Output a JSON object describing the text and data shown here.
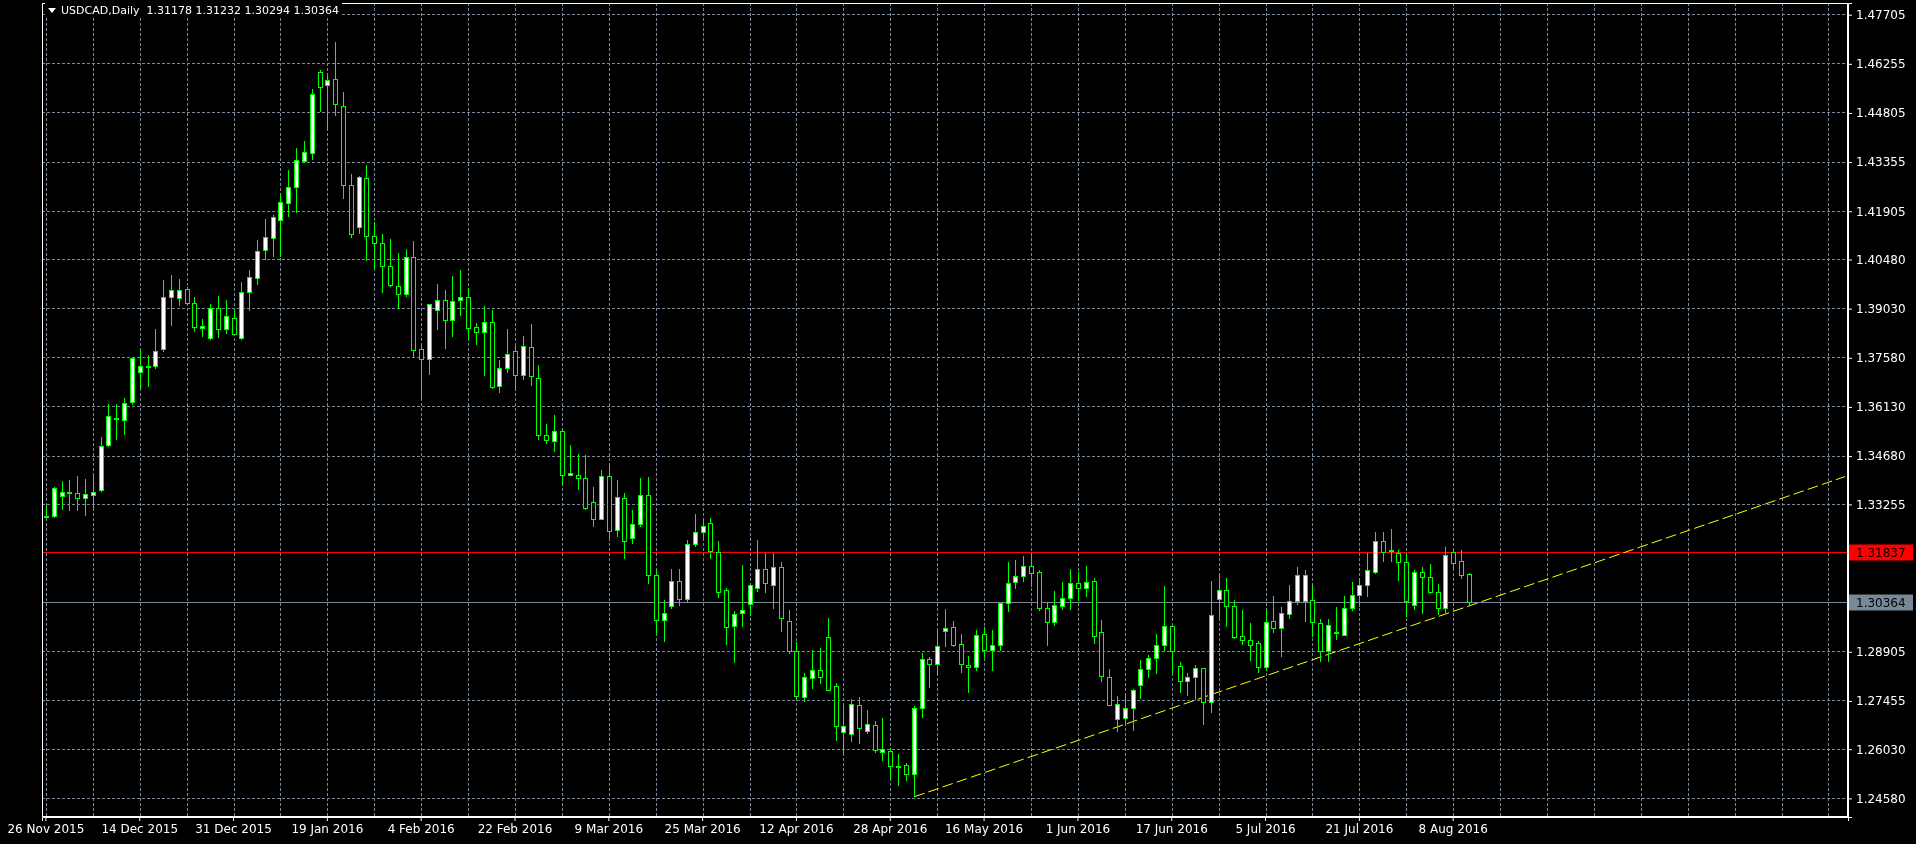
{
  "chart_data": {
    "type": "candlestick",
    "title": "USDCAD,Daily  1.31178 1.31232 1.30294 1.30364",
    "color": "#00ff00",
    "categories": [
      "26 Nov 2015",
      null,
      null,
      null,
      null,
      null,
      null,
      null,
      null,
      null,
      null,
      null,
      "14 Dec 2015",
      null,
      null,
      null,
      null,
      null,
      null,
      null,
      null,
      null,
      null,
      null,
      "31 Dec 2015",
      null,
      null,
      null,
      null,
      null,
      null,
      null,
      null,
      null,
      null,
      null,
      "19 Jan 2016",
      null,
      null,
      null,
      null,
      null,
      null,
      null,
      null,
      null,
      null,
      null,
      "4 Feb 2016",
      null,
      null,
      null,
      null,
      null,
      null,
      null,
      null,
      null,
      null,
      null,
      "22 Feb 2016",
      null,
      null,
      null,
      null,
      null,
      null,
      null,
      null,
      null,
      null,
      null,
      "9 Mar 2016",
      null,
      null,
      null,
      null,
      null,
      null,
      null,
      null,
      null,
      null,
      null,
      "25 Mar 2016",
      null,
      null,
      null,
      null,
      null,
      null,
      null,
      null,
      null,
      null,
      null,
      "12 Apr 2016",
      null,
      null,
      null,
      null,
      null,
      null,
      null,
      null,
      null,
      null,
      null,
      "28 Apr 2016",
      null,
      null,
      null,
      null,
      null,
      null,
      null,
      null,
      null,
      null,
      null,
      "16 May 2016",
      null,
      null,
      null,
      null,
      null,
      null,
      null,
      null,
      null,
      null,
      null,
      "1 Jun 2016",
      null,
      null,
      null,
      null,
      null,
      null,
      null,
      null,
      null,
      null,
      null,
      "17 Jun 2016",
      null,
      null,
      null,
      null,
      null,
      null,
      null,
      null,
      null,
      null,
      null,
      "5 Jul 2016",
      null,
      null,
      null,
      null,
      null,
      null,
      null,
      null,
      null,
      null,
      null,
      "21 Jul 2016",
      null,
      null,
      null,
      null,
      null,
      null,
      null,
      null,
      null,
      null,
      null,
      "8 Aug 2016",
      null,
      null,
      null,
      null,
      null,
      null,
      null,
      null,
      null,
      null,
      null,
      null,
      null,
      null,
      null,
      null,
      null,
      null,
      null,
      null,
      null,
      null,
      null,
      null,
      null,
      null,
      null,
      null,
      null,
      null,
      null,
      null,
      null,
      null,
      null,
      null,
      null,
      null,
      null,
      null,
      null,
      null,
      null,
      null,
      null,
      null,
      null,
      null,
      null,
      null
    ],
    "ohlc": [
      [
        1.3289,
        1.3323,
        1.3284,
        1.3291
      ],
      [
        1.3289,
        1.3377,
        1.3286,
        1.3372
      ],
      [
        1.3349,
        1.3394,
        1.3308,
        1.3361
      ],
      [
        1.336,
        1.3397,
        1.3305,
        1.3358
      ],
      [
        1.3358,
        1.3409,
        1.3306,
        1.3343
      ],
      [
        1.3343,
        1.34,
        1.3292,
        1.3355
      ],
      [
        1.3351,
        1.3415,
        1.3311,
        1.3361
      ],
      [
        1.3367,
        1.3525,
        1.3363,
        1.3497
      ],
      [
        1.35,
        1.3621,
        1.3495,
        1.3586
      ],
      [
        1.3578,
        1.3621,
        1.3515,
        1.358
      ],
      [
        1.3572,
        1.3638,
        1.353,
        1.3623
      ],
      [
        1.3625,
        1.3758,
        1.3618,
        1.3756
      ],
      [
        1.3716,
        1.378,
        1.3667,
        1.3733
      ],
      [
        1.3732,
        1.3766,
        1.3672,
        1.373
      ],
      [
        1.3731,
        1.3844,
        1.3726,
        1.3778
      ],
      [
        1.3782,
        1.3987,
        1.3775,
        1.3936
      ],
      [
        1.3936,
        1.4002,
        1.3851,
        1.3956
      ],
      [
        1.3932,
        1.3992,
        1.391,
        1.3956
      ],
      [
        1.3959,
        1.3967,
        1.391,
        1.3918
      ],
      [
        1.3918,
        1.3936,
        1.3834,
        1.3847
      ],
      [
        1.3844,
        1.3874,
        1.3818,
        1.3851
      ],
      [
        1.3815,
        1.3916,
        1.3812,
        1.3903
      ],
      [
        1.3903,
        1.394,
        1.3815,
        1.3841
      ],
      [
        1.3841,
        1.3928,
        1.3828,
        1.3881
      ],
      [
        1.3874,
        1.3898,
        1.3823,
        1.3827
      ],
      [
        1.3815,
        1.3982,
        1.3812,
        1.3952
      ],
      [
        1.395,
        1.4018,
        1.3896,
        1.3995
      ],
      [
        1.3992,
        1.4107,
        1.3972,
        1.4073
      ],
      [
        1.4075,
        1.4169,
        1.4048,
        1.4113
      ],
      [
        1.411,
        1.4179,
        1.4056,
        1.4172
      ],
      [
        1.4162,
        1.4244,
        1.4056,
        1.4215
      ],
      [
        1.4213,
        1.4313,
        1.4174,
        1.426
      ],
      [
        1.426,
        1.4378,
        1.4185,
        1.4339
      ],
      [
        1.4336,
        1.4397,
        1.4333,
        1.4365
      ],
      [
        1.4362,
        1.4552,
        1.4341,
        1.4534
      ],
      [
        1.4601,
        1.4606,
        1.4483,
        1.4555
      ],
      [
        1.4561,
        1.4592,
        1.4427,
        1.4577
      ],
      [
        1.4579,
        1.4689,
        1.4471,
        1.4506
      ],
      [
        1.4501,
        1.4541,
        1.4226,
        1.4265
      ],
      [
        1.4265,
        1.43,
        1.4112,
        1.4122
      ],
      [
        1.4142,
        1.4294,
        1.4123,
        1.429
      ],
      [
        1.4287,
        1.4326,
        1.4044,
        1.4115
      ],
      [
        1.4115,
        1.4159,
        1.4021,
        1.4095
      ],
      [
        1.4095,
        1.4123,
        1.3948,
        1.4026
      ],
      [
        1.4028,
        1.4108,
        1.3967,
        1.397
      ],
      [
        1.3967,
        1.4066,
        1.3903,
        1.3944
      ],
      [
        1.3945,
        1.408,
        1.3936,
        1.4054
      ],
      [
        1.4054,
        1.4102,
        1.3756,
        1.378
      ],
      [
        1.3782,
        1.3797,
        1.3633,
        1.3753
      ],
      [
        1.3753,
        1.3918,
        1.3707,
        1.3915
      ],
      [
        1.3898,
        1.3977,
        1.3839,
        1.3928
      ],
      [
        1.3928,
        1.3959,
        1.3784,
        1.3869
      ],
      [
        1.3869,
        1.3999,
        1.382,
        1.3924
      ],
      [
        1.3928,
        1.4016,
        1.3882,
        1.3936
      ],
      [
        1.3936,
        1.3964,
        1.381,
        1.3844
      ],
      [
        1.3847,
        1.3862,
        1.3795,
        1.3833
      ],
      [
        1.3833,
        1.391,
        1.3705,
        1.3862
      ],
      [
        1.3862,
        1.3898,
        1.3665,
        1.3669
      ],
      [
        1.3674,
        1.3751,
        1.3653,
        1.3726
      ],
      [
        1.3726,
        1.3844,
        1.3714,
        1.3768
      ],
      [
        1.3777,
        1.3792,
        1.366,
        1.3705
      ],
      [
        1.3705,
        1.3822,
        1.3692,
        1.3792
      ],
      [
        1.3788,
        1.3859,
        1.3675,
        1.3704
      ],
      [
        1.3697,
        1.3736,
        1.3515,
        1.3528
      ],
      [
        1.3529,
        1.3564,
        1.3505,
        1.3514
      ],
      [
        1.3511,
        1.3589,
        1.3481,
        1.3541
      ],
      [
        1.3541,
        1.3549,
        1.3382,
        1.3411
      ],
      [
        1.3411,
        1.35,
        1.341,
        1.3417
      ],
      [
        1.3411,
        1.3474,
        1.3367,
        1.3402
      ],
      [
        1.3402,
        1.347,
        1.3308,
        1.3313
      ],
      [
        1.3331,
        1.3377,
        1.3259,
        1.3281
      ],
      [
        1.3281,
        1.3426,
        1.3279,
        1.3408
      ],
      [
        1.3408,
        1.3446,
        1.3225,
        1.3246
      ],
      [
        1.3247,
        1.3397,
        1.323,
        1.3346
      ],
      [
        1.3343,
        1.3358,
        1.3164,
        1.3215
      ],
      [
        1.3225,
        1.3308,
        1.3208,
        1.3266
      ],
      [
        1.3266,
        1.3404,
        1.3259,
        1.3352
      ],
      [
        1.3352,
        1.3406,
        1.3092,
        1.3115
      ],
      [
        1.3116,
        1.3131,
        1.2941,
        1.2983
      ],
      [
        1.2983,
        1.3043,
        1.292,
        1.3004
      ],
      [
        1.3023,
        1.3136,
        1.3018,
        1.3099
      ],
      [
        1.3099,
        1.3136,
        1.3025,
        1.3045
      ],
      [
        1.3045,
        1.322,
        1.3038,
        1.3208
      ],
      [
        1.3207,
        1.3297,
        1.32,
        1.3243
      ],
      [
        1.3242,
        1.3285,
        1.3223,
        1.3261
      ],
      [
        1.3269,
        1.3285,
        1.3164,
        1.3186
      ],
      [
        1.3183,
        1.3217,
        1.3048,
        1.3065
      ],
      [
        1.3072,
        1.308,
        1.291,
        1.2962
      ],
      [
        1.2964,
        1.3011,
        1.2856,
        1.3001
      ],
      [
        1.3004,
        1.3146,
        1.2964,
        1.3012
      ],
      [
        1.303,
        1.3094,
        1.2996,
        1.3086
      ],
      [
        1.3077,
        1.322,
        1.3068,
        1.3133
      ],
      [
        1.3133,
        1.3181,
        1.3063,
        1.3092
      ],
      [
        1.3086,
        1.3181,
        1.3018,
        1.3139
      ],
      [
        1.3139,
        1.3154,
        1.295,
        1.2989
      ],
      [
        1.298,
        1.3015,
        1.2884,
        1.2891
      ],
      [
        1.2891,
        1.2918,
        1.2748,
        1.2758
      ],
      [
        1.2756,
        1.2827,
        1.2743,
        1.2815
      ],
      [
        1.2811,
        1.2897,
        1.278,
        1.2836
      ],
      [
        1.2836,
        1.2901,
        1.2795,
        1.2815
      ],
      [
        1.2934,
        1.299,
        1.2775,
        1.2777
      ],
      [
        1.2788,
        1.2797,
        1.2628,
        1.2669
      ],
      [
        1.2652,
        1.2733,
        1.2589,
        1.267
      ],
      [
        1.2647,
        1.275,
        1.2625,
        1.2735
      ],
      [
        1.2732,
        1.2756,
        1.2618,
        1.2663
      ],
      [
        1.2656,
        1.2719,
        1.2648,
        1.2676
      ],
      [
        1.2673,
        1.2686,
        1.2591,
        1.26
      ],
      [
        1.2594,
        1.2694,
        1.2568,
        1.2603
      ],
      [
        1.2597,
        1.2608,
        1.2512,
        1.2551
      ],
      [
        1.2552,
        1.2588,
        1.2494,
        1.2551
      ],
      [
        1.2555,
        1.2561,
        1.2509,
        1.2528
      ],
      [
        1.2529,
        1.273,
        1.2463,
        1.2723
      ],
      [
        1.2723,
        1.2886,
        1.2696,
        1.2868
      ],
      [
        1.2868,
        1.2874,
        1.2784,
        1.2853
      ],
      [
        1.2853,
        1.2952,
        1.2822,
        1.2906
      ],
      [
        1.2951,
        1.3016,
        1.2905,
        1.2959
      ],
      [
        1.2962,
        1.2981,
        1.2905,
        1.2908
      ],
      [
        1.2912,
        1.2943,
        1.2829,
        1.2853
      ],
      [
        1.285,
        1.2878,
        1.277,
        1.2844
      ],
      [
        1.2844,
        1.2956,
        1.2834,
        1.2939
      ],
      [
        1.2942,
        1.2964,
        1.2871,
        1.2895
      ],
      [
        1.2894,
        1.2955,
        1.2835,
        1.2909
      ],
      [
        1.2909,
        1.3035,
        1.2894,
        1.3033
      ],
      [
        1.3033,
        1.3156,
        1.3009,
        1.3092
      ],
      [
        1.3094,
        1.3161,
        1.3075,
        1.3113
      ],
      [
        1.3112,
        1.3173,
        1.3097,
        1.3142
      ],
      [
        1.3142,
        1.3181,
        1.3082,
        1.3121
      ],
      [
        1.3125,
        1.3133,
        1.3011,
        1.3017
      ],
      [
        1.3018,
        1.3035,
        1.2908,
        1.2977
      ],
      [
        1.2977,
        1.307,
        1.2967,
        1.3027
      ],
      [
        1.3024,
        1.3096,
        1.3014,
        1.3048
      ],
      [
        1.3048,
        1.3134,
        1.3014,
        1.3092
      ],
      [
        1.3092,
        1.3125,
        1.3041,
        1.3077
      ],
      [
        1.3077,
        1.3143,
        1.3053,
        1.3095
      ],
      [
        1.3098,
        1.3108,
        1.2914,
        1.2936
      ],
      [
        1.2948,
        1.2984,
        1.2802,
        1.2818
      ],
      [
        1.2815,
        1.2839,
        1.273,
        1.2733
      ],
      [
        1.2691,
        1.276,
        1.2653,
        1.2735
      ],
      [
        1.2693,
        1.277,
        1.2673,
        1.2723
      ],
      [
        1.2723,
        1.278,
        1.2658,
        1.2777
      ],
      [
        1.2791,
        1.2866,
        1.275,
        1.2839
      ],
      [
        1.2839,
        1.2881,
        1.2814,
        1.2871
      ],
      [
        1.2871,
        1.2943,
        1.2825,
        1.2909
      ],
      [
        1.2909,
        1.3084,
        1.2894,
        1.2965
      ],
      [
        1.2965,
        1.2966,
        1.2829,
        1.2892
      ],
      [
        1.2847,
        1.2859,
        1.277,
        1.2803
      ],
      [
        1.2803,
        1.2827,
        1.2761,
        1.2815
      ],
      [
        1.2815,
        1.2853,
        1.2748,
        1.284
      ],
      [
        1.284,
        1.2844,
        1.2674,
        1.2741
      ],
      [
        1.2741,
        1.3099,
        1.2711,
        1.2998
      ],
      [
        1.3045,
        1.3122,
        1.2991,
        1.3072
      ],
      [
        1.3072,
        1.3107,
        1.2964,
        1.3024
      ],
      [
        1.3024,
        1.3043,
        1.2929,
        1.2933
      ],
      [
        1.2936,
        1.3015,
        1.2911,
        1.2924
      ],
      [
        1.2924,
        1.2974,
        1.2864,
        1.2909
      ],
      [
        1.2915,
        1.2921,
        1.2829,
        1.2844
      ],
      [
        1.2844,
        1.3018,
        1.2835,
        1.2977
      ],
      [
        1.298,
        1.3055,
        1.2947,
        1.2958
      ],
      [
        1.2958,
        1.3022,
        1.2876,
        1.3004
      ],
      [
        1.3,
        1.3089,
        1.2986,
        1.3039
      ],
      [
        1.304,
        1.3141,
        1.3028,
        1.3117
      ],
      [
        1.304,
        1.3133,
        1.2979,
        1.3117
      ],
      [
        1.3041,
        1.3087,
        1.2935,
        1.2976
      ],
      [
        1.2974,
        1.2987,
        1.2861,
        1.2891
      ],
      [
        1.2891,
        1.2987,
        1.2861,
        1.2969
      ],
      [
        1.2945,
        1.3023,
        1.2925,
        1.2946
      ],
      [
        1.294,
        1.3055,
        1.2937,
        1.3018
      ],
      [
        1.3017,
        1.3096,
        1.3012,
        1.3057
      ],
      [
        1.3057,
        1.3107,
        1.3023,
        1.3086
      ],
      [
        1.3085,
        1.3181,
        1.3053,
        1.3131
      ],
      [
        1.3125,
        1.3244,
        1.312,
        1.3216
      ],
      [
        1.3216,
        1.3244,
        1.3156,
        1.3183
      ],
      [
        1.3188,
        1.3252,
        1.3156,
        1.3186
      ],
      [
        1.3181,
        1.3192,
        1.31,
        1.3153
      ],
      [
        1.3154,
        1.3181,
        1.2994,
        1.3038
      ],
      [
        1.3027,
        1.3133,
        1.3014,
        1.3125
      ],
      [
        1.3125,
        1.3141,
        1.3002,
        1.311
      ],
      [
        1.311,
        1.3149,
        1.3061,
        1.3065
      ],
      [
        1.3066,
        1.309,
        1.2999,
        1.3017
      ],
      [
        1.3017,
        1.32,
        1.3004,
        1.3175
      ],
      [
        1.3183,
        1.319,
        1.3134,
        1.3151
      ],
      [
        1.3157,
        1.319,
        1.3105,
        1.3116
      ],
      [
        1.31178,
        1.31232,
        1.30294,
        1.30364
      ],
      null,
      null,
      null,
      null,
      null,
      null,
      null,
      null,
      null,
      null,
      null,
      null,
      null,
      null,
      null,
      null,
      null,
      null,
      null,
      null,
      null,
      null,
      null,
      null,
      null,
      null,
      null,
      null,
      null,
      null,
      null,
      null,
      null,
      null,
      null,
      null,
      null,
      null,
      null,
      null,
      null,
      null,
      null,
      null,
      null,
      null,
      null,
      null
    ],
    "colors": [
      "#ffffff",
      "#ffffff",
      "#ffffff",
      "#000000",
      "#000000",
      "#ffffff",
      "#ffffff",
      "#ffffff",
      "#ffffff",
      "#ffffff",
      "#ffffff",
      "#ffffff",
      "#ffffff",
      "#000000",
      "#ffffff",
      "#ffffff",
      "#ffffff",
      "#ffffff",
      "#000000",
      "#000000",
      "#ffffff",
      "#ffffff",
      "#000000",
      "#ffffff",
      "#000000",
      "#ffffff",
      "#ffffff",
      "#ffffff",
      "#ffffff",
      "#ffffff",
      "#ffffff",
      "#ffffff",
      "#ffffff",
      "#ffffff",
      "#ffffff",
      "#000000",
      "#ffffff",
      "#000000",
      "#000000",
      "#000000",
      "#ffffff",
      "#000000",
      "#000000",
      "#000000",
      "#000000",
      "#000000",
      "#ffffff",
      "#000000",
      "#000000",
      "#ffffff",
      "#ffffff",
      "#000000",
      "#ffffff",
      "#ffffff",
      "#000000",
      "#000000",
      "#ffffff",
      "#000000",
      "#ffffff",
      "#ffffff",
      "#000000",
      "#ffffff",
      "#000000",
      "#000000",
      "#000000",
      "#ffffff",
      "#000000",
      "#ffffff",
      "#000000",
      "#000000",
      "#000000",
      "#ffffff",
      "#000000",
      "#ffffff",
      "#000000",
      "#ffffff",
      "#ffffff",
      "#000000",
      "#000000",
      "#ffffff",
      "#ffffff",
      "#000000",
      "#ffffff",
      "#ffffff",
      "#ffffff",
      "#000000",
      "#000000",
      "#000000",
      "#ffffff",
      "#ffffff",
      "#ffffff",
      "#ffffff",
      "#000000",
      "#ffffff",
      "#000000",
      "#000000",
      "#000000",
      "#ffffff",
      "#ffffff",
      "#000000",
      "#000000",
      "#000000",
      "#ffffff",
      "#ffffff",
      "#000000",
      "#ffffff",
      "#000000",
      "#ffffff",
      "#000000",
      "#000000",
      "#000000",
      "#ffffff",
      "#ffffff",
      "#000000",
      "#ffffff",
      "#ffffff",
      "#000000",
      "#000000",
      "#000000",
      "#ffffff",
      "#000000",
      "#ffffff",
      "#ffffff",
      "#ffffff",
      "#ffffff",
      "#ffffff",
      "#000000",
      "#000000",
      "#000000",
      "#ffffff",
      "#ffffff",
      "#ffffff",
      "#000000",
      "#ffffff",
      "#000000",
      "#000000",
      "#000000",
      "#ffffff",
      "#ffffff",
      "#ffffff",
      "#ffffff",
      "#ffffff",
      "#ffffff",
      "#ffffff",
      "#000000",
      "#000000",
      "#ffffff",
      "#ffffff",
      "#000000",
      "#ffffff",
      "#ffffff",
      "#000000",
      "#000000",
      "#000000",
      "#000000",
      "#000000",
      "#ffffff",
      "#000000",
      "#ffffff",
      "#ffffff",
      "#ffffff",
      "#ffffff",
      "#000000",
      "#000000",
      "#ffffff",
      "#ffffff",
      "#ffffff",
      "#ffffff",
      "#ffffff",
      "#ffffff",
      "#ffffff",
      "#000000",
      "#000000",
      "#000000",
      "#000000",
      "#ffffff",
      "#000000",
      "#000000",
      "#000000",
      "#ffffff",
      "#000000",
      "#000000",
      "#000000",
      null,
      null,
      null,
      null,
      null,
      null,
      null,
      null,
      null,
      null,
      null,
      null,
      null,
      null,
      null,
      null,
      null,
      null,
      null,
      null,
      null,
      null,
      null,
      null,
      null,
      null,
      null,
      null,
      null,
      null,
      null,
      null,
      null,
      null,
      null,
      null,
      null,
      null,
      null,
      null,
      null,
      null,
      null,
      null,
      null,
      null,
      null,
      null
    ],
    "series": [
      {
        "type": "line",
        "color": "#ffff00",
        "line_style": "dashed",
        "values": [
          null,
          null,
          null,
          null,
          null,
          null,
          null,
          null,
          null,
          null,
          null,
          null,
          null,
          null,
          null,
          null,
          null,
          null,
          null,
          null,
          null,
          null,
          null,
          null,
          null,
          null,
          null,
          null,
          null,
          null,
          null,
          null,
          null,
          null,
          null,
          null,
          null,
          null,
          null,
          null,
          null,
          null,
          null,
          null,
          null,
          null,
          null,
          null,
          null,
          null,
          null,
          null,
          null,
          null,
          null,
          null,
          null,
          null,
          null,
          null,
          null,
          null,
          null,
          null,
          null,
          null,
          null,
          null,
          null,
          null,
          null,
          null,
          null,
          null,
          null,
          null,
          null,
          null,
          null,
          null,
          null,
          null,
          null,
          null,
          null,
          null,
          null,
          null,
          null,
          null,
          null,
          null,
          null,
          null,
          null,
          null,
          null,
          null,
          null,
          null,
          null,
          null,
          null,
          null,
          null,
          null,
          null,
          null,
          null,
          null,
          null,
          1.2463,
          null,
          null,
          null,
          null,
          null,
          null,
          null,
          null,
          null,
          null,
          null,
          null,
          null,
          null,
          null,
          null,
          null,
          null,
          null,
          null,
          null,
          null,
          null,
          null,
          null,
          null,
          null,
          null,
          null,
          null,
          null,
          null,
          null,
          null,
          null,
          null,
          null,
          null,
          null,
          null,
          null,
          null,
          null,
          null,
          null,
          null,
          null,
          null,
          null,
          null,
          null,
          null,
          null,
          null,
          null,
          null,
          null,
          null,
          null,
          null,
          null,
          null,
          null,
          null,
          null,
          null,
          null,
          null,
          null,
          null,
          null,
          null,
          null,
          null,
          null,
          null,
          null,
          null,
          null,
          null,
          null,
          null,
          null,
          null,
          null,
          null,
          null,
          null,
          null,
          null,
          null,
          null,
          null,
          null,
          null,
          null,
          null,
          null,
          null,
          null,
          null,
          null,
          null,
          null,
          null,
          null,
          null,
          null,
          null,
          null,
          null,
          null,
          null,
          null,
          null,
          null,
          null,
          null,
          1.3407
        ]
      }
    ],
    "ylim": [
      1.2403,
      1.4805
    ],
    "yticks": [
      {
        "value": 1.2458,
        "label": "1.24580"
      },
      {
        "value": 1.2603,
        "label": "1.26030"
      },
      1.27455,
      1.28905,
      1.30364,
      1.31837,
      1.33255,
      {
        "value": 1.3468,
        "label": "1.34680"
      },
      {
        "value": 1.3613,
        "label": "1.36130"
      },
      {
        "value": 1.3758,
        "label": "1.37580"
      },
      {
        "value": 1.3903,
        "label": "1.39030"
      },
      {
        "value": 1.4048,
        "label": "1.40480"
      },
      1.41905,
      1.43355,
      1.44805,
      1.46255,
      1.47705
    ],
    "ref_lines": [
      {
        "axis": "y",
        "value": 1.31837,
        "label": "1.31837",
        "color": "#ff0000"
      },
      {
        "axis": "y",
        "value": 1.30364,
        "label": "1.30364",
        "color": "#778899"
      }
    ],
    "grid": true
  }
}
